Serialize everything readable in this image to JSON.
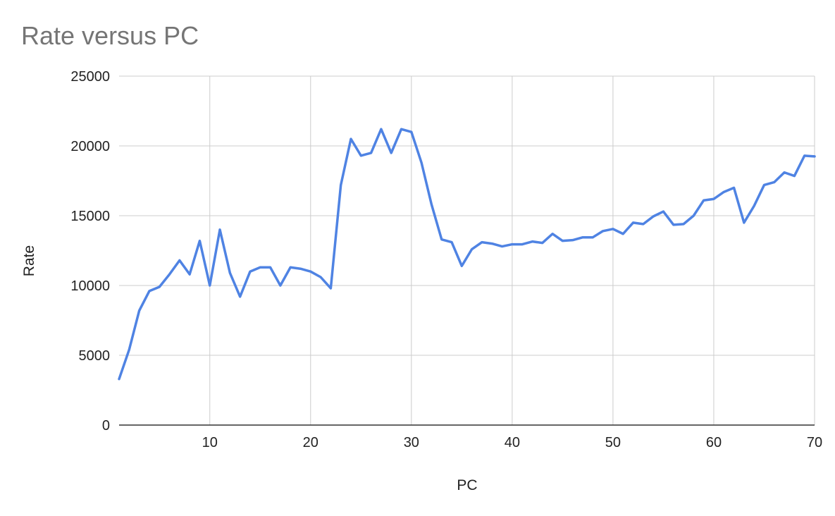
{
  "chart_data": {
    "type": "line",
    "title": "Rate versus PC",
    "xlabel": "PC",
    "ylabel": "Rate",
    "xlim": [
      1,
      70
    ],
    "ylim": [
      0,
      25000
    ],
    "xticks": [
      10,
      20,
      30,
      40,
      50,
      60,
      70
    ],
    "yticks": [
      0,
      5000,
      10000,
      15000,
      20000,
      25000
    ],
    "grid": true,
    "legend": "none",
    "series": [
      {
        "name": "Rate",
        "color": "#4f83e3",
        "x": [
          1,
          2,
          3,
          4,
          5,
          6,
          7,
          8,
          9,
          10,
          11,
          12,
          13,
          14,
          15,
          16,
          17,
          18,
          19,
          20,
          21,
          22,
          23,
          24,
          25,
          26,
          27,
          28,
          29,
          30,
          31,
          32,
          33,
          34,
          35,
          36,
          37,
          38,
          39,
          40,
          41,
          42,
          43,
          44,
          45,
          46,
          47,
          48,
          49,
          50,
          51,
          52,
          53,
          54,
          55,
          56,
          57,
          58,
          59,
          60,
          61,
          62,
          63,
          64,
          65,
          66,
          67,
          68,
          69,
          70
        ],
        "values": [
          3300,
          5400,
          8200,
          9600,
          9900,
          10800,
          11800,
          10800,
          13200,
          10000,
          14000,
          10900,
          9200,
          11000,
          11300,
          11300,
          10000,
          11300,
          11200,
          11000,
          10600,
          9800,
          17200,
          20500,
          19300,
          19500,
          21200,
          19500,
          21200,
          21000,
          18800,
          15800,
          13300,
          13100,
          11400,
          12600,
          13100,
          13000,
          12800,
          12950,
          12950,
          13150,
          13050,
          13700,
          13200,
          13250,
          13450,
          13450,
          13900,
          14050,
          13700,
          14500,
          14400,
          14950,
          15300,
          14350,
          14400,
          15000,
          16100,
          16200,
          16700,
          17000,
          14500,
          15700,
          17200,
          17400,
          18100,
          17850,
          19300,
          19250
        ]
      }
    ]
  }
}
